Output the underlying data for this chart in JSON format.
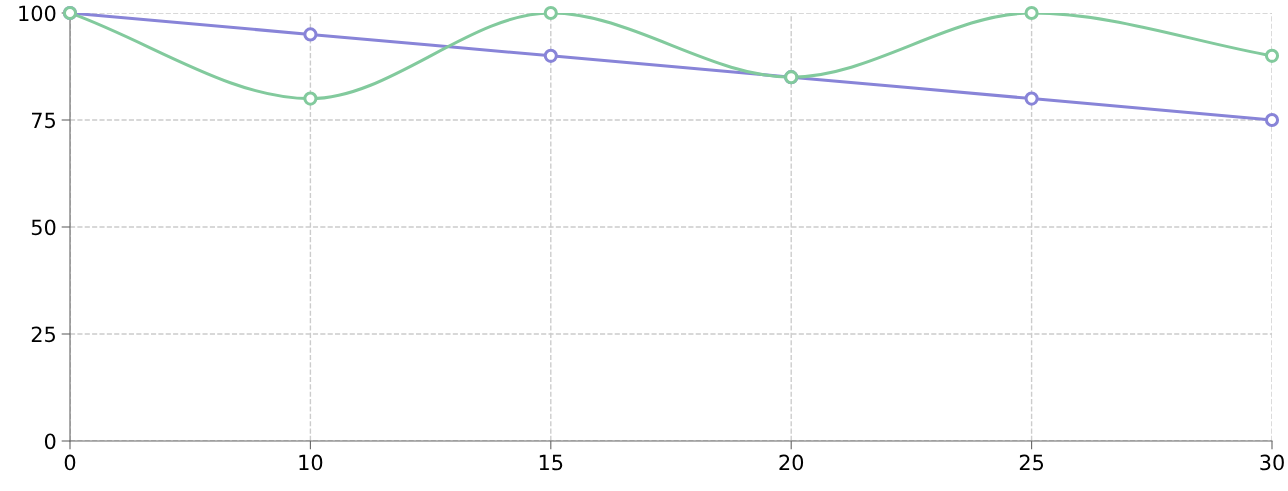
{
  "chart_data": {
    "type": "line",
    "categories": [
      "0",
      "10",
      "15",
      "20",
      "25",
      "30"
    ],
    "series": [
      {
        "color": "#8884d8",
        "values": [
          100,
          95,
          90,
          85,
          80,
          75
        ]
      },
      {
        "color": "#82ca9d",
        "values": [
          100,
          80,
          100,
          85,
          100,
          90
        ]
      }
    ],
    "ylim": [
      0,
      100
    ],
    "yticks": [
      0,
      25,
      50,
      75,
      100
    ],
    "grid": true,
    "marker": "circle",
    "line_style": "solid"
  }
}
